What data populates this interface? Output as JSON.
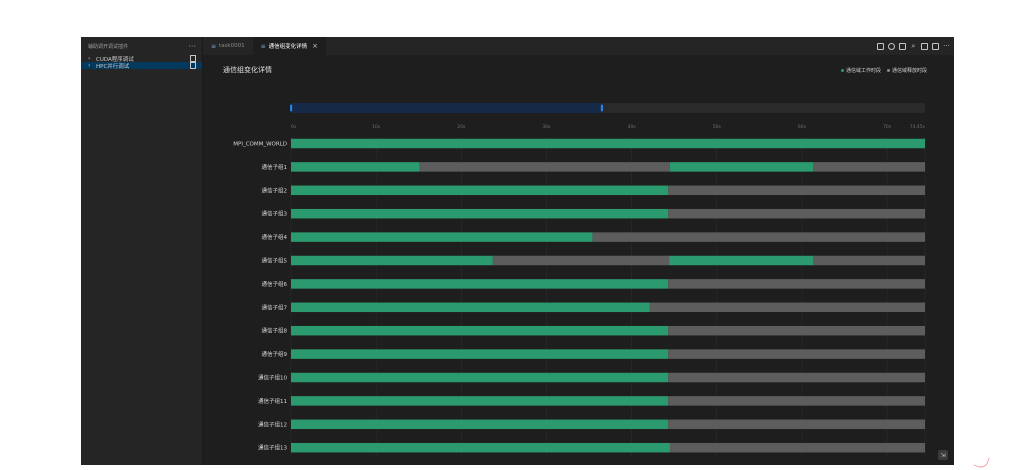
{
  "sidebar": {
    "title": "辅助调开调试插件",
    "more": "···",
    "items": [
      {
        "label": "CUDA程序调试",
        "active": false
      },
      {
        "label": "HPC并行调试",
        "active": true
      }
    ]
  },
  "tabs": [
    {
      "icon": "≡",
      "label": "task0001",
      "active": false
    },
    {
      "icon": "≡",
      "label": "通信组变化详情",
      "active": true,
      "close": "×"
    }
  ],
  "toolbar_more": "···",
  "page_title": "通信组变化详情",
  "legend": [
    {
      "label": "通信域工作时段",
      "color": "#2b9a6e"
    },
    {
      "label": "通信域释放时段",
      "color": "#8a8a8a"
    }
  ],
  "chart_data": {
    "type": "gantt",
    "title": "通信组变化详情",
    "x_unit": "s",
    "xlim": [
      0,
      74.45
    ],
    "ticks": [
      "0s",
      "10s",
      "20s",
      "30s",
      "40s",
      "50s",
      "60s",
      "70s",
      "74.45s"
    ],
    "tick_values": [
      0,
      10,
      20,
      30,
      40,
      50,
      60,
      70,
      74.45
    ],
    "slider_range": [
      0,
      36.5
    ],
    "colors": {
      "active": "#2b9a6e",
      "released": "#5d5d5d"
    },
    "rows": [
      {
        "name": "MPI_COMM_WORLD",
        "segments": [
          [
            0,
            74.45,
            "active"
          ]
        ]
      },
      {
        "name": "通信子组1",
        "segments": [
          [
            0,
            15.1,
            "active"
          ],
          [
            15.1,
            44.5,
            "released"
          ],
          [
            44.5,
            61.3,
            "active"
          ],
          [
            61.3,
            74.45,
            "released"
          ]
        ]
      },
      {
        "name": "通信子组2",
        "segments": [
          [
            0,
            44.3,
            "active"
          ],
          [
            44.3,
            74.45,
            "released"
          ]
        ]
      },
      {
        "name": "通信子组3",
        "segments": [
          [
            0,
            44.3,
            "active"
          ],
          [
            44.3,
            74.45,
            "released"
          ]
        ]
      },
      {
        "name": "通信子组4",
        "segments": [
          [
            0,
            35.4,
            "active"
          ],
          [
            35.4,
            74.45,
            "released"
          ]
        ]
      },
      {
        "name": "通信子组5",
        "segments": [
          [
            0,
            23.7,
            "active"
          ],
          [
            23.7,
            44.4,
            "released"
          ],
          [
            44.4,
            61.3,
            "active"
          ],
          [
            61.3,
            74.45,
            "released"
          ]
        ]
      },
      {
        "name": "通信子组6",
        "segments": [
          [
            0,
            44.3,
            "active"
          ],
          [
            44.3,
            74.45,
            "released"
          ]
        ]
      },
      {
        "name": "通信子组7",
        "segments": [
          [
            0,
            42.1,
            "active"
          ],
          [
            42.1,
            74.45,
            "released"
          ]
        ]
      },
      {
        "name": "通信子组8",
        "segments": [
          [
            0,
            44.3,
            "active"
          ],
          [
            44.3,
            74.45,
            "released"
          ]
        ]
      },
      {
        "name": "通信子组9",
        "segments": [
          [
            0,
            44.3,
            "active"
          ],
          [
            44.3,
            74.45,
            "released"
          ]
        ]
      },
      {
        "name": "通信子组10",
        "segments": [
          [
            0,
            44.3,
            "active"
          ],
          [
            44.3,
            74.45,
            "released"
          ]
        ]
      },
      {
        "name": "通信子组11",
        "segments": [
          [
            0,
            44.3,
            "active"
          ],
          [
            44.3,
            74.45,
            "released"
          ]
        ]
      },
      {
        "name": "通信子组12",
        "segments": [
          [
            0,
            44.3,
            "active"
          ],
          [
            44.3,
            74.45,
            "released"
          ]
        ]
      },
      {
        "name": "通信子组13",
        "segments": [
          [
            0,
            44.5,
            "active"
          ],
          [
            44.5,
            74.45,
            "released"
          ]
        ]
      }
    ]
  }
}
